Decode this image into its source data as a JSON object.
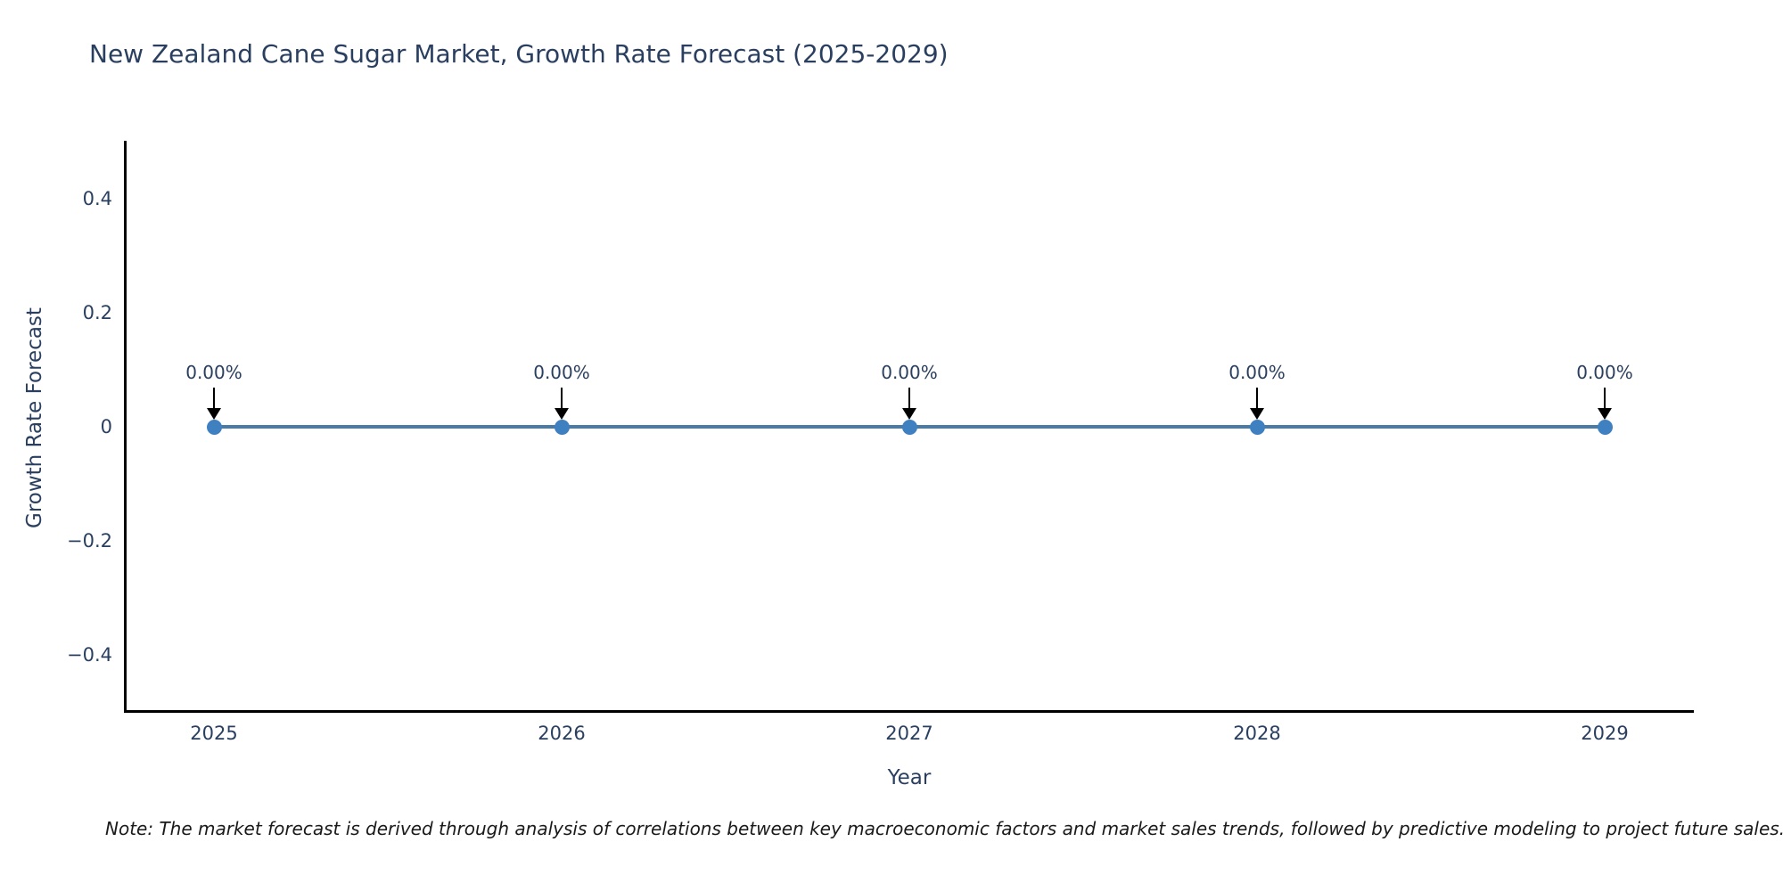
{
  "title": "New Zealand Cane Sugar Market, Growth Rate Forecast (2025-2029)",
  "note": "Note: The market forecast is derived through analysis of correlations between key macroeconomic factors and market sales trends, followed by predictive modeling to project future sales.",
  "colors": {
    "background": "#ffffff",
    "text": "#2a3f5f",
    "note_text": "#1a1a1a",
    "axis": "#000000",
    "line": "#4a7aa6",
    "marker": "#3f80c1",
    "arrow": "#000000"
  },
  "chart_data": {
    "type": "line",
    "title": "New Zealand Cane Sugar Market, Growth Rate Forecast (2025-2029)",
    "xlabel": "Year",
    "ylabel": "Growth Rate Forecast",
    "x": [
      2025,
      2026,
      2027,
      2028,
      2029
    ],
    "series": [
      {
        "name": "Growth Rate Forecast",
        "values": [
          0,
          0,
          0,
          0,
          0
        ]
      }
    ],
    "point_labels": [
      "0.00%",
      "0.00%",
      "0.00%",
      "0.00%",
      "0.00%"
    ],
    "yticks": [
      0.4,
      0.2,
      0,
      -0.2,
      -0.4
    ],
    "ylim": [
      -0.5,
      0.5
    ],
    "xlim_categories_inset": true,
    "grid": false,
    "legend": false,
    "marker": "circle",
    "annotation_arrow": "down"
  }
}
